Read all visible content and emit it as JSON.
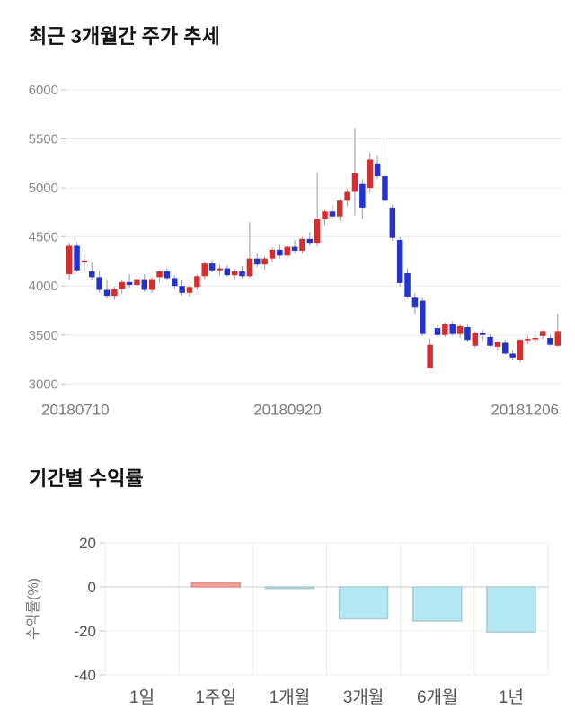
{
  "price_chart": {
    "title": "최근 3개월간 주가 추세"
  },
  "returns_chart": {
    "title": "기간별 수익률"
  },
  "chart_data": [
    {
      "type": "candlestick",
      "title": "최근 3개월간 주가 추세",
      "ylim": [
        3000,
        6000
      ],
      "y_ticks": [
        6000,
        5500,
        5000,
        4500,
        4000,
        3500,
        3000
      ],
      "x_labels": [
        "20180710",
        "20180920",
        "20181206"
      ],
      "grid": "horizontal",
      "up_color": "#d62e2e",
      "down_color": "#2433cf",
      "wick_color": "#999999",
      "candles_ohlc": [
        [
          4120,
          4440,
          4060,
          4410
        ],
        [
          4410,
          4440,
          4140,
          4160
        ],
        [
          4240,
          4330,
          4150,
          4260
        ],
        [
          4150,
          4240,
          4060,
          4090
        ],
        [
          4090,
          4150,
          3930,
          3960
        ],
        [
          3960,
          4060,
          3870,
          3900
        ],
        [
          3900,
          3990,
          3860,
          3970
        ],
        [
          3970,
          4060,
          3920,
          4040
        ],
        [
          4040,
          4120,
          3980,
          4010
        ],
        [
          4010,
          4090,
          3960,
          4070
        ],
        [
          4070,
          4120,
          3940,
          3960
        ],
        [
          3960,
          4090,
          3930,
          4070
        ],
        [
          4090,
          4160,
          4040,
          4150
        ],
        [
          4150,
          4180,
          4060,
          4080
        ],
        [
          4080,
          4110,
          3970,
          4000
        ],
        [
          4000,
          4060,
          3900,
          3930
        ],
        [
          3930,
          4010,
          3890,
          3990
        ],
        [
          3990,
          4120,
          3960,
          4100
        ],
        [
          4100,
          4250,
          4070,
          4230
        ],
        [
          4230,
          4270,
          4140,
          4160
        ],
        [
          4160,
          4220,
          4110,
          4180
        ],
        [
          4180,
          4210,
          4090,
          4110
        ],
        [
          4110,
          4180,
          4060,
          4150
        ],
        [
          4150,
          4200,
          4080,
          4100
        ],
        [
          4100,
          4650,
          4080,
          4280
        ],
        [
          4280,
          4330,
          4190,
          4220
        ],
        [
          4220,
          4300,
          4170,
          4280
        ],
        [
          4280,
          4390,
          4240,
          4370
        ],
        [
          4370,
          4420,
          4280,
          4310
        ],
        [
          4310,
          4420,
          4270,
          4400
        ],
        [
          4400,
          4470,
          4330,
          4360
        ],
        [
          4360,
          4500,
          4330,
          4480
        ],
        [
          4480,
          4550,
          4410,
          4440
        ],
        [
          4440,
          5160,
          4400,
          4680
        ],
        [
          4680,
          4780,
          4620,
          4760
        ],
        [
          4760,
          4830,
          4680,
          4710
        ],
        [
          4710,
          4890,
          4670,
          4870
        ],
        [
          4870,
          4990,
          4810,
          4960
        ],
        [
          4960,
          5610,
          4720,
          5150
        ],
        [
          5040,
          5090,
          4680,
          4800
        ],
        [
          5000,
          5360,
          4950,
          5290
        ],
        [
          5250,
          5330,
          5090,
          5120
        ],
        [
          5120,
          5520,
          4840,
          4870
        ],
        [
          4800,
          4830,
          4460,
          4490
        ],
        [
          4470,
          4500,
          4000,
          4030
        ],
        [
          4130,
          4180,
          3870,
          3890
        ],
        [
          3880,
          3930,
          3720,
          3780
        ],
        [
          3850,
          3880,
          3490,
          3510
        ],
        [
          3160,
          3460,
          3150,
          3400
        ],
        [
          3570,
          3600,
          3480,
          3500
        ],
        [
          3500,
          3630,
          3480,
          3610
        ],
        [
          3610,
          3640,
          3490,
          3510
        ],
        [
          3510,
          3610,
          3470,
          3590
        ],
        [
          3580,
          3610,
          3430,
          3450
        ],
        [
          3390,
          3540,
          3370,
          3520
        ],
        [
          3520,
          3560,
          3440,
          3500
        ],
        [
          3480,
          3510,
          3380,
          3390
        ],
        [
          3380,
          3440,
          3350,
          3430
        ],
        [
          3420,
          3450,
          3300,
          3310
        ],
        [
          3310,
          3350,
          3250,
          3270
        ],
        [
          3250,
          3460,
          3220,
          3450
        ],
        [
          3450,
          3490,
          3410,
          3460
        ],
        [
          3460,
          3500,
          3420,
          3470
        ],
        [
          3490,
          3550,
          3460,
          3540
        ],
        [
          3470,
          3500,
          3390,
          3400
        ],
        [
          3390,
          3720,
          3380,
          3540
        ]
      ]
    },
    {
      "type": "bar",
      "title": "기간별 수익률",
      "categories": [
        "1일",
        "1주일",
        "1개월",
        "3개월",
        "6개월",
        "1년"
      ],
      "values": [
        0,
        1.7,
        -0.7,
        -14.5,
        -15.5,
        -20.5
      ],
      "ylabel": "수익률(%)",
      "y_ticks": [
        20,
        0,
        -20,
        -40
      ],
      "ylim": [
        -40,
        20
      ],
      "grid": "both",
      "positive_fill": "#f4a4a0",
      "positive_stroke": "#e18985",
      "negative_fill": "#b5e9f2",
      "negative_stroke": "#a8ccd4"
    }
  ]
}
